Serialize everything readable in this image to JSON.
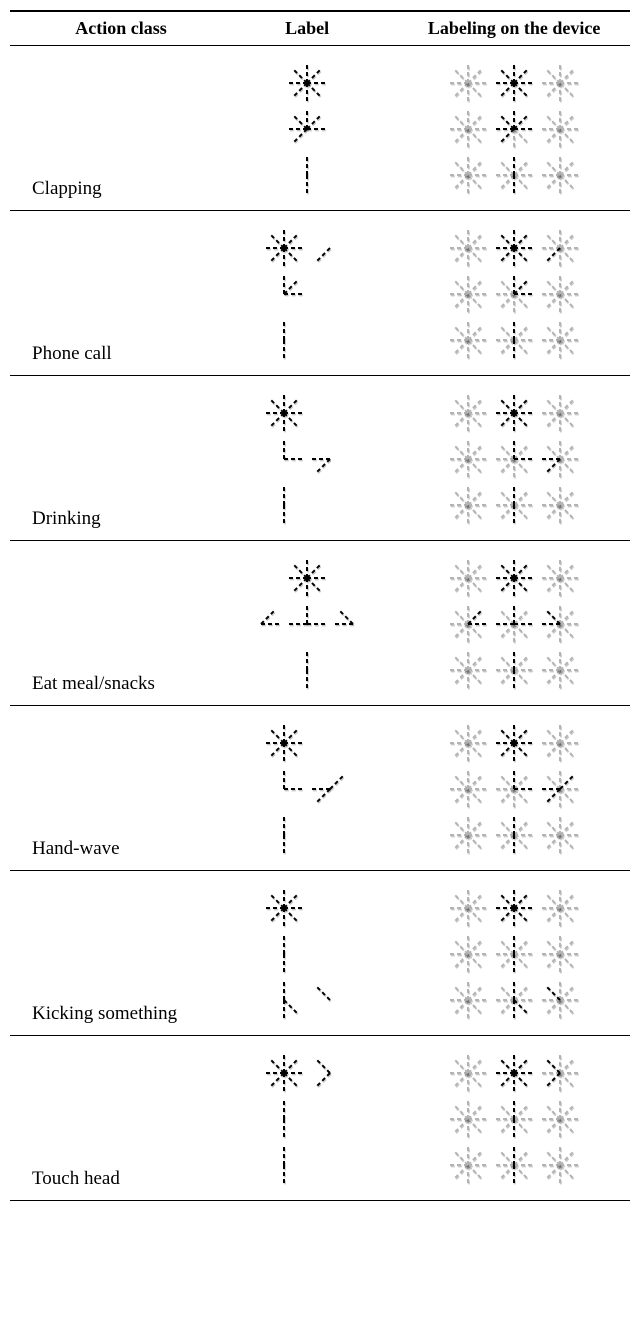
{
  "headers": {
    "action_class": "Action class",
    "label": "Label",
    "device": "Labeling on the device"
  },
  "styling": {
    "active_color": "#000000",
    "inactive_color": "#b3b3b3",
    "line_width": 2.0,
    "dash": "4 3",
    "background": "#ffffff",
    "font_family": "Times New Roman",
    "header_font_weight": "bold",
    "shadow": "0.6px 1.2px 0.8px rgba(0,0,0,0.35)",
    "label_svg_size": [
      120,
      150
    ],
    "device_svg_size": [
      150,
      150
    ],
    "cell_size": 50,
    "segments_per_cell": "8 radial dashed segments (N,NE,E,SE,S,SW,W,NW)"
  },
  "segment_geometry_note": "Each cell is an asterisk of 8 dashed segments radiating from center. Segment keys: N,NE,E,SE,S,SW,W,NW.",
  "actions": [
    {
      "name": "Clapping",
      "label_cells": {
        "0,0": [
          "N",
          "NE",
          "E",
          "SE",
          "S",
          "SW",
          "W",
          "NW"
        ],
        "1,0": [
          "N",
          "NE",
          "E",
          "SW",
          "W",
          "NW"
        ],
        "2,0": [
          "N",
          "S"
        ]
      },
      "device_grid_size": [
        3,
        3
      ],
      "device_highlight": {
        "0,1": [
          "N",
          "NE",
          "E",
          "SE",
          "S",
          "SW",
          "W",
          "NW"
        ],
        "1,1": [
          "N",
          "NE",
          "E",
          "SW",
          "W",
          "NW"
        ],
        "2,1": [
          "N",
          "S"
        ]
      }
    },
    {
      "name": "Phone call",
      "label_cells": {
        "0,0": [
          "N",
          "NE",
          "E",
          "SE",
          "S",
          "SW",
          "W",
          "NW"
        ],
        "0,1": [
          "SW"
        ],
        "1,0": [
          "N",
          "NE",
          "E"
        ],
        "2,0": [
          "N",
          "S"
        ]
      },
      "device_grid_size": [
        3,
        3
      ],
      "device_highlight": {
        "0,1": [
          "N",
          "NE",
          "E",
          "SE",
          "S",
          "SW",
          "W",
          "NW"
        ],
        "0,2": [
          "SW"
        ],
        "1,1": [
          "N",
          "NE",
          "E"
        ],
        "2,1": [
          "N",
          "S"
        ]
      }
    },
    {
      "name": "Drinking",
      "label_cells": {
        "0,0": [
          "N",
          "NE",
          "E",
          "SE",
          "S",
          "SW",
          "W",
          "NW"
        ],
        "1,0": [
          "N",
          "E"
        ],
        "1,1": [
          "SW",
          "W"
        ],
        "2,0": [
          "N",
          "S"
        ]
      },
      "device_grid_size": [
        3,
        3
      ],
      "device_highlight": {
        "0,1": [
          "N",
          "NE",
          "E",
          "SE",
          "S",
          "SW",
          "W",
          "NW"
        ],
        "1,1": [
          "N",
          "E"
        ],
        "1,2": [
          "SW",
          "W"
        ],
        "2,1": [
          "N",
          "S"
        ]
      }
    },
    {
      "name": "Eat meal/snacks",
      "label_cells": {
        "0,1": [
          "N",
          "NE",
          "E",
          "SE",
          "S",
          "SW",
          "W",
          "NW"
        ],
        "1,0": [
          "NE",
          "E"
        ],
        "1,1": [
          "N",
          "E",
          "W"
        ],
        "1,2": [
          "NW",
          "W"
        ],
        "2,1": [
          "N",
          "S"
        ]
      },
      "device_grid_size": [
        3,
        3
      ],
      "device_highlight": {
        "0,1": [
          "N",
          "NE",
          "E",
          "SE",
          "S",
          "SW",
          "W",
          "NW"
        ],
        "1,0": [
          "NE",
          "E"
        ],
        "1,1": [
          "N",
          "E",
          "W"
        ],
        "1,2": [
          "NW",
          "W"
        ],
        "2,1": [
          "N",
          "S"
        ]
      }
    },
    {
      "name": "Hand-wave",
      "label_cells": {
        "0,0": [
          "N",
          "NE",
          "E",
          "SE",
          "S",
          "SW",
          "W",
          "NW"
        ],
        "1,0": [
          "N",
          "E"
        ],
        "1,1": [
          "W",
          "SW",
          "NE"
        ],
        "2,0": [
          "N",
          "S"
        ]
      },
      "device_grid_size": [
        3,
        3
      ],
      "device_highlight": {
        "0,1": [
          "N",
          "NE",
          "E",
          "SE",
          "S",
          "SW",
          "W",
          "NW"
        ],
        "1,1": [
          "N",
          "E"
        ],
        "1,2": [
          "W",
          "SW",
          "NE"
        ],
        "2,1": [
          "N",
          "S"
        ]
      }
    },
    {
      "name": "Kicking something",
      "label_cells": {
        "0,0": [
          "N",
          "NE",
          "E",
          "SE",
          "S",
          "SW",
          "W",
          "NW"
        ],
        "1,0": [
          "N",
          "S"
        ],
        "2,0": [
          "N",
          "S",
          "SE"
        ],
        "2,1": [
          "NW"
        ]
      },
      "device_grid_size": [
        3,
        3
      ],
      "device_highlight": {
        "0,1": [
          "N",
          "NE",
          "E",
          "SE",
          "S",
          "SW",
          "W",
          "NW"
        ],
        "1,1": [
          "N",
          "S"
        ],
        "2,1": [
          "N",
          "S",
          "SE"
        ],
        "2,2": [
          "NW"
        ]
      }
    },
    {
      "name": "Touch head",
      "label_cells": {
        "0,0": [
          "N",
          "NE",
          "E",
          "SE",
          "S",
          "SW",
          "W",
          "NW"
        ],
        "0,1": [
          "NW",
          "SW"
        ],
        "1,0": [
          "N",
          "S"
        ],
        "2,0": [
          "N",
          "S"
        ]
      },
      "device_grid_size": [
        3,
        3
      ],
      "device_highlight": {
        "0,1": [
          "N",
          "NE",
          "E",
          "SE",
          "S",
          "SW",
          "W",
          "NW"
        ],
        "0,2": [
          "NW",
          "SW"
        ],
        "1,1": [
          "N",
          "S"
        ],
        "2,1": [
          "N",
          "S"
        ]
      }
    }
  ]
}
